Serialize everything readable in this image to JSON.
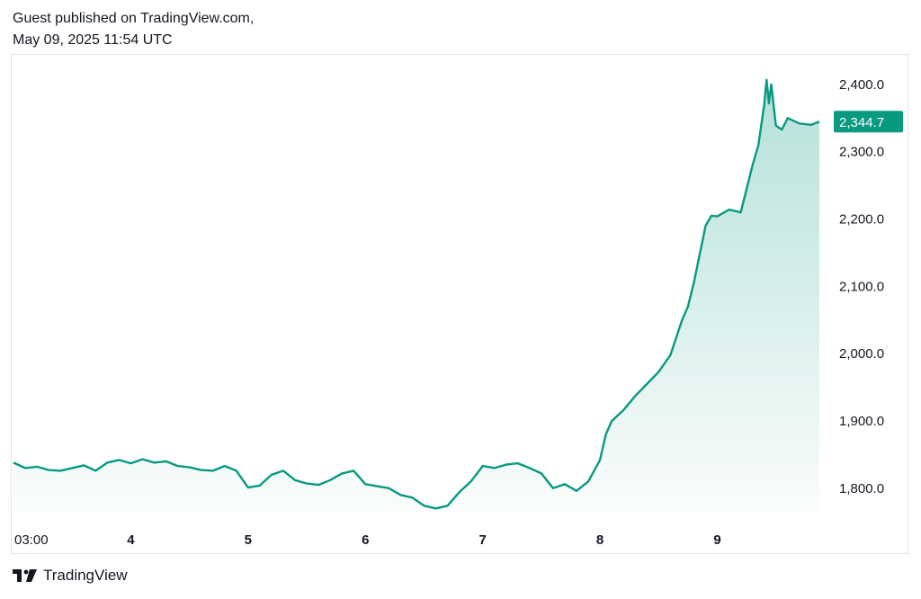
{
  "header": {
    "publisher": "Guest published on TradingView.com,",
    "timestamp": "May 09, 2025 11:54 UTC"
  },
  "brand": {
    "name": "TradingView"
  },
  "colors": {
    "line": "#089981",
    "fill": "#089981",
    "price_tag_bg": "#089981",
    "price_tag_text": "#ffffff",
    "axis_text": "#131722",
    "border": "#e0e3eb"
  },
  "chart_data": {
    "type": "area",
    "title": "",
    "xlabel": "",
    "ylabel": "",
    "x_ticks": [
      "03:00",
      "4",
      "5",
      "6",
      "7",
      "8",
      "9"
    ],
    "y_ticks": [
      "2,400.0",
      "2,300.0",
      "2,200.0",
      "2,100.0",
      "2,000.0",
      "1,900.0",
      "1,800.0"
    ],
    "y_tick_values": [
      2400,
      2300,
      2200,
      2100,
      2000,
      1900,
      1800
    ],
    "ylim": [
      1765,
      2436
    ],
    "xlim": [
      0,
      6.87
    ],
    "grid": false,
    "last_price_label": "2,344.7",
    "last_price": 2344.7,
    "series": [
      {
        "x": [
          0.0,
          0.1,
          0.2,
          0.3,
          0.4,
          0.5,
          0.6,
          0.7,
          0.8,
          0.9,
          1.0,
          1.1,
          1.2,
          1.3,
          1.4,
          1.5,
          1.6,
          1.7,
          1.8,
          1.9,
          2.0,
          2.1,
          2.2,
          2.3,
          2.4,
          2.5,
          2.6,
          2.7,
          2.8,
          2.9,
          3.0,
          3.1,
          3.2,
          3.3,
          3.4,
          3.5,
          3.6,
          3.7,
          3.8,
          3.9,
          4.0,
          4.1,
          4.2,
          4.3,
          4.4,
          4.5,
          4.6,
          4.7,
          4.8,
          4.9,
          5.0,
          5.05,
          5.1,
          5.2,
          5.3,
          5.4,
          5.5,
          5.6,
          5.7,
          5.75,
          5.8,
          5.9,
          5.95,
          6.0,
          6.1,
          6.2,
          6.3,
          6.35,
          6.4,
          6.42,
          6.44,
          6.46,
          6.5,
          6.55,
          6.6,
          6.7,
          6.8,
          6.87
        ],
        "values": [
          1838,
          1830,
          1832,
          1827,
          1826,
          1830,
          1834,
          1826,
          1838,
          1842,
          1837,
          1843,
          1838,
          1840,
          1833,
          1831,
          1827,
          1826,
          1833,
          1826,
          1801,
          1804,
          1820,
          1826,
          1812,
          1807,
          1805,
          1812,
          1822,
          1826,
          1806,
          1803,
          1800,
          1790,
          1786,
          1774,
          1770,
          1774,
          1794,
          1810,
          1833,
          1830,
          1835,
          1837,
          1830,
          1822,
          1800,
          1806,
          1796,
          1810,
          1842,
          1880,
          1900,
          1916,
          1937,
          1955,
          1973,
          1998,
          2050,
          2070,
          2105,
          2190,
          2205,
          2204,
          2214,
          2210,
          2280,
          2310,
          2370,
          2407,
          2372,
          2400,
          2339,
          2333,
          2350,
          2342,
          2340,
          2344.7
        ]
      }
    ]
  }
}
